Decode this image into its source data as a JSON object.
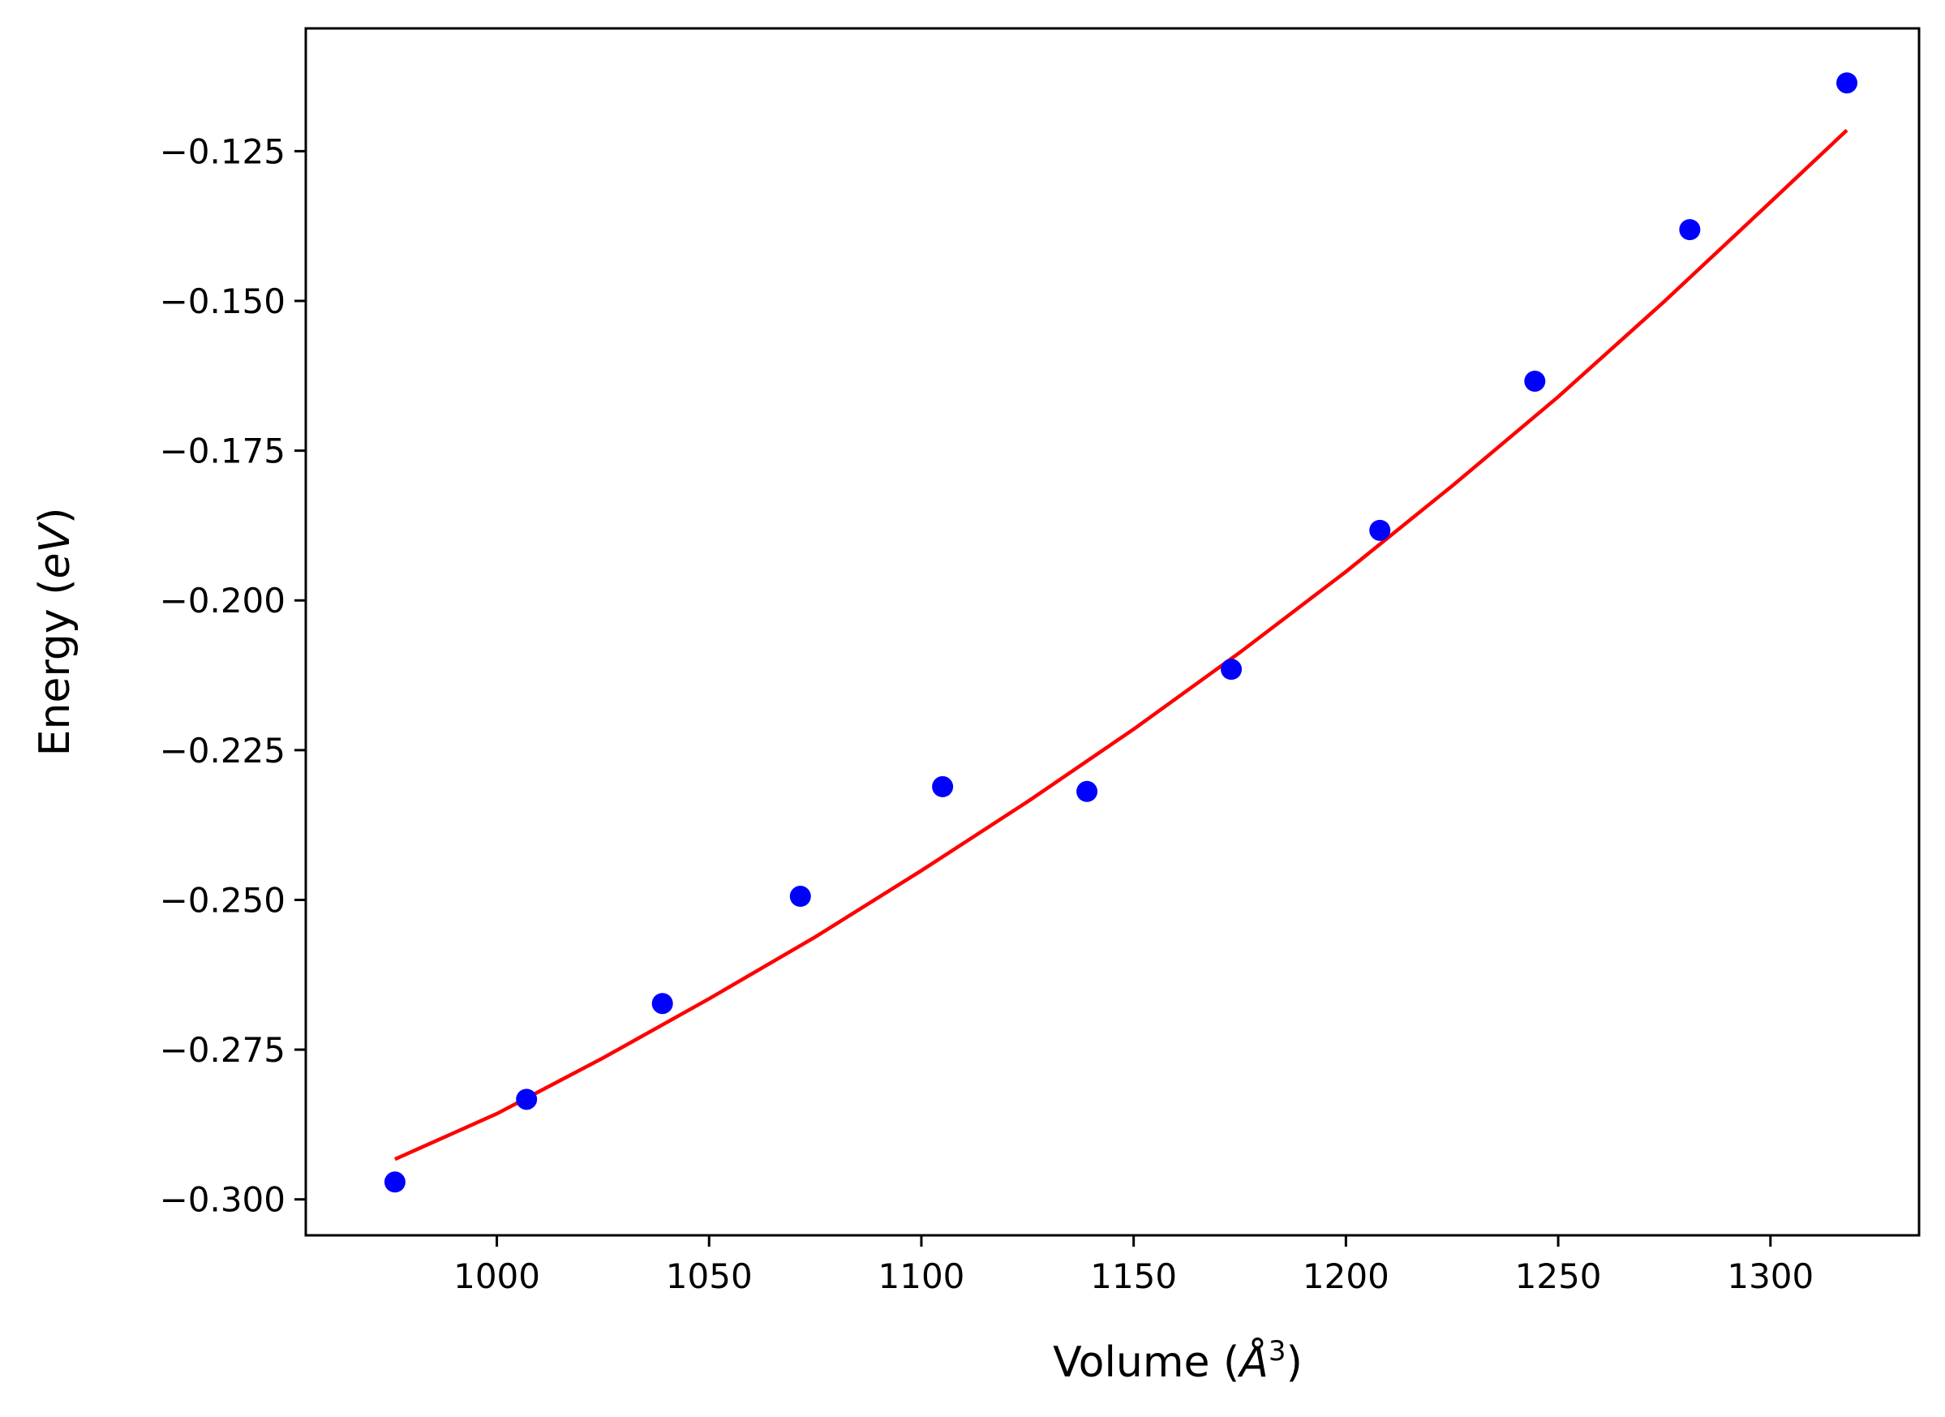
{
  "chart_data": {
    "type": "scatter",
    "title": "",
    "xlabel_text": "Volume (",
    "xlabel_unit": "Å",
    "xlabel_sup": "3",
    "xlabel_close": ")",
    "ylabel_text": "Energy (",
    "ylabel_unit": "eV",
    "ylabel_close": ")",
    "xlim": [
      955,
      1335
    ],
    "ylim": [
      -0.306,
      -0.1045
    ],
    "xticks": [
      1000,
      1050,
      1100,
      1150,
      1200,
      1250,
      1300
    ],
    "yticks": [
      -0.125,
      -0.15,
      -0.175,
      -0.2,
      -0.225,
      -0.25,
      -0.275,
      -0.3
    ],
    "grid": false,
    "series": [
      {
        "kind": "points",
        "color": "#0000ff",
        "x": [
          976,
          1007,
          1039,
          1071.5,
          1105,
          1139,
          1173,
          1208,
          1244.5,
          1281,
          1318
        ],
        "y": [
          -0.2971,
          -0.2833,
          -0.2673,
          -0.2494,
          -0.2311,
          -0.2319,
          -0.2115,
          -0.1883,
          -0.1634,
          -0.1381,
          -0.1136
        ]
      },
      {
        "kind": "fit-line",
        "color": "#ff0000",
        "x": [
          976,
          1000,
          1025,
          1050,
          1075,
          1100,
          1125,
          1150,
          1175,
          1200,
          1225,
          1250,
          1275,
          1300,
          1318
        ],
        "y": [
          -0.2933,
          -0.2857,
          -0.2764,
          -0.2665,
          -0.2562,
          -0.2451,
          -0.2336,
          -0.2215,
          -0.2087,
          -0.1952,
          -0.1809,
          -0.166,
          -0.1501,
          -0.1335,
          -0.1215
        ]
      }
    ]
  }
}
